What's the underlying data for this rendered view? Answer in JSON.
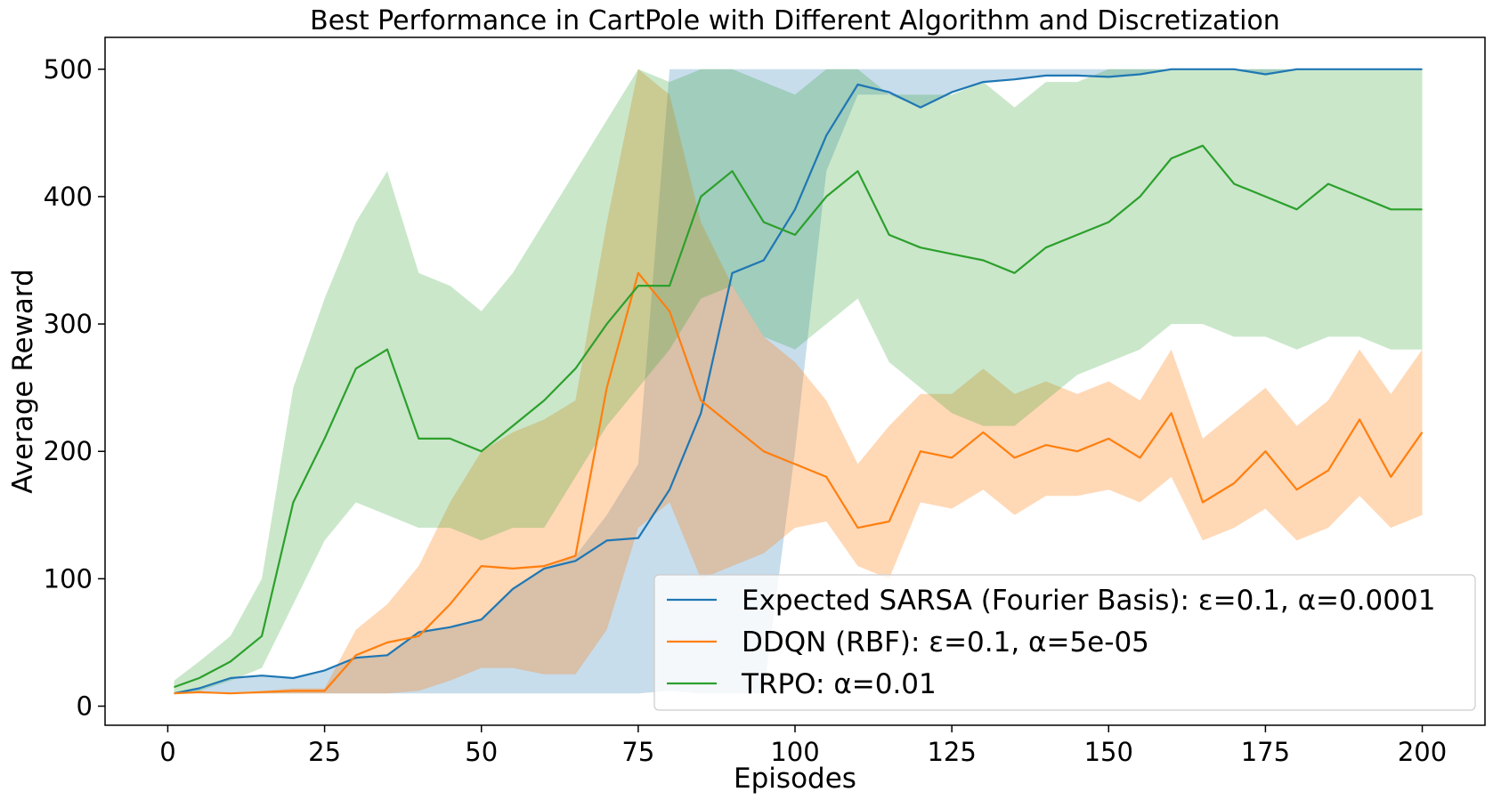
{
  "chart_data": {
    "type": "line",
    "title": "Best Performance in CartPole with Different Algorithm and Discretization",
    "xlabel": "Episodes",
    "ylabel": "Average Reward",
    "xlim": [
      -10,
      210
    ],
    "ylim": [
      -15,
      525
    ],
    "xticks": [
      0,
      25,
      50,
      75,
      100,
      125,
      150,
      175,
      200
    ],
    "yticks": [
      0,
      100,
      200,
      300,
      400,
      500
    ],
    "grid": false,
    "legend_position": "lower-right",
    "shaded_bands": true,
    "series": [
      {
        "name": "Expected SARSA (Fourier Basis): ε=0.1, α=0.0001",
        "color": "#1f77b4",
        "band_alpha": 0.25,
        "x": [
          1,
          5,
          10,
          15,
          20,
          25,
          30,
          35,
          40,
          45,
          50,
          55,
          60,
          65,
          70,
          75,
          80,
          85,
          90,
          95,
          100,
          105,
          110,
          115,
          120,
          125,
          130,
          135,
          140,
          145,
          150,
          155,
          160,
          165,
          170,
          175,
          180,
          185,
          190,
          195,
          200
        ],
        "values": [
          10,
          14,
          22,
          24,
          22,
          28,
          38,
          40,
          58,
          62,
          68,
          92,
          108,
          114,
          130,
          132,
          170,
          230,
          340,
          350,
          390,
          448,
          488,
          482,
          470,
          482,
          490,
          492,
          495,
          495,
          494,
          496,
          500,
          500,
          500,
          496,
          500,
          500,
          500,
          500,
          500
        ],
        "lower": [
          10,
          10,
          10,
          10,
          10,
          10,
          10,
          10,
          10,
          10,
          10,
          10,
          10,
          10,
          10,
          10,
          12,
          10,
          10,
          10,
          200,
          420,
          480,
          480,
          470,
          482,
          490,
          492,
          495,
          495,
          494,
          496,
          500,
          500,
          500,
          496,
          500,
          500,
          500,
          500,
          500
        ],
        "upper": [
          10,
          14,
          22,
          24,
          22,
          28,
          38,
          40,
          58,
          62,
          68,
          92,
          108,
          118,
          150,
          190,
          500,
          500,
          500,
          500,
          500,
          500,
          500,
          500,
          500,
          500,
          500,
          500,
          500,
          500,
          500,
          500,
          500,
          500,
          500,
          500,
          500,
          500,
          500,
          500,
          500
        ]
      },
      {
        "name": "DDQN (RBF): ε=0.1, α=5e-05",
        "color": "#ff7f0e",
        "band_alpha": 0.3,
        "x": [
          1,
          5,
          10,
          15,
          20,
          25,
          30,
          35,
          40,
          45,
          50,
          55,
          60,
          65,
          70,
          75,
          80,
          85,
          90,
          95,
          100,
          105,
          110,
          115,
          120,
          125,
          130,
          135,
          140,
          145,
          150,
          155,
          160,
          165,
          170,
          175,
          180,
          185,
          190,
          195,
          200
        ],
        "values": [
          10,
          11,
          10,
          11,
          12,
          12,
          40,
          50,
          55,
          80,
          110,
          108,
          110,
          118,
          250,
          340,
          310,
          240,
          220,
          200,
          190,
          180,
          140,
          145,
          200,
          195,
          215,
          195,
          205,
          200,
          210,
          195,
          230,
          160,
          175,
          200,
          170,
          185,
          225,
          180,
          215
        ],
        "lower": [
          10,
          10,
          10,
          10,
          10,
          10,
          10,
          10,
          12,
          20,
          30,
          30,
          25,
          25,
          60,
          140,
          160,
          100,
          110,
          120,
          140,
          145,
          110,
          100,
          160,
          155,
          170,
          150,
          165,
          165,
          170,
          160,
          180,
          130,
          140,
          155,
          130,
          140,
          165,
          140,
          150
        ],
        "upper": [
          10,
          12,
          10,
          12,
          14,
          14,
          60,
          80,
          110,
          160,
          200,
          215,
          225,
          240,
          380,
          500,
          480,
          380,
          330,
          290,
          270,
          240,
          190,
          220,
          245,
          245,
          265,
          245,
          255,
          245,
          255,
          240,
          280,
          210,
          230,
          250,
          220,
          240,
          280,
          245,
          280
        ]
      },
      {
        "name": "TRPO: α=0.01",
        "color": "#2ca02c",
        "band_alpha": 0.25,
        "x": [
          1,
          5,
          10,
          15,
          20,
          25,
          30,
          35,
          40,
          45,
          50,
          55,
          60,
          65,
          70,
          75,
          80,
          85,
          90,
          95,
          100,
          105,
          110,
          115,
          120,
          125,
          130,
          135,
          140,
          145,
          150,
          155,
          160,
          165,
          170,
          175,
          180,
          185,
          190,
          195,
          200
        ],
        "values": [
          15,
          22,
          35,
          55,
          160,
          210,
          265,
          280,
          210,
          210,
          200,
          220,
          240,
          265,
          300,
          330,
          330,
          400,
          420,
          380,
          370,
          400,
          420,
          370,
          360,
          355,
          350,
          340,
          360,
          370,
          380,
          400,
          430,
          440,
          410,
          400,
          390,
          410,
          400,
          390,
          390
        ],
        "lower": [
          10,
          12,
          20,
          30,
          80,
          130,
          160,
          150,
          140,
          140,
          130,
          140,
          140,
          180,
          220,
          250,
          280,
          320,
          330,
          290,
          280,
          300,
          320,
          270,
          250,
          230,
          220,
          220,
          240,
          260,
          270,
          280,
          300,
          300,
          290,
          290,
          280,
          290,
          290,
          280,
          280
        ],
        "upper": [
          20,
          35,
          55,
          100,
          250,
          320,
          380,
          420,
          340,
          330,
          310,
          340,
          380,
          420,
          460,
          500,
          490,
          500,
          500,
          490,
          480,
          500,
          500,
          480,
          480,
          480,
          490,
          470,
          490,
          490,
          500,
          500,
          500,
          500,
          500,
          500,
          500,
          500,
          500,
          500,
          500
        ]
      }
    ]
  }
}
